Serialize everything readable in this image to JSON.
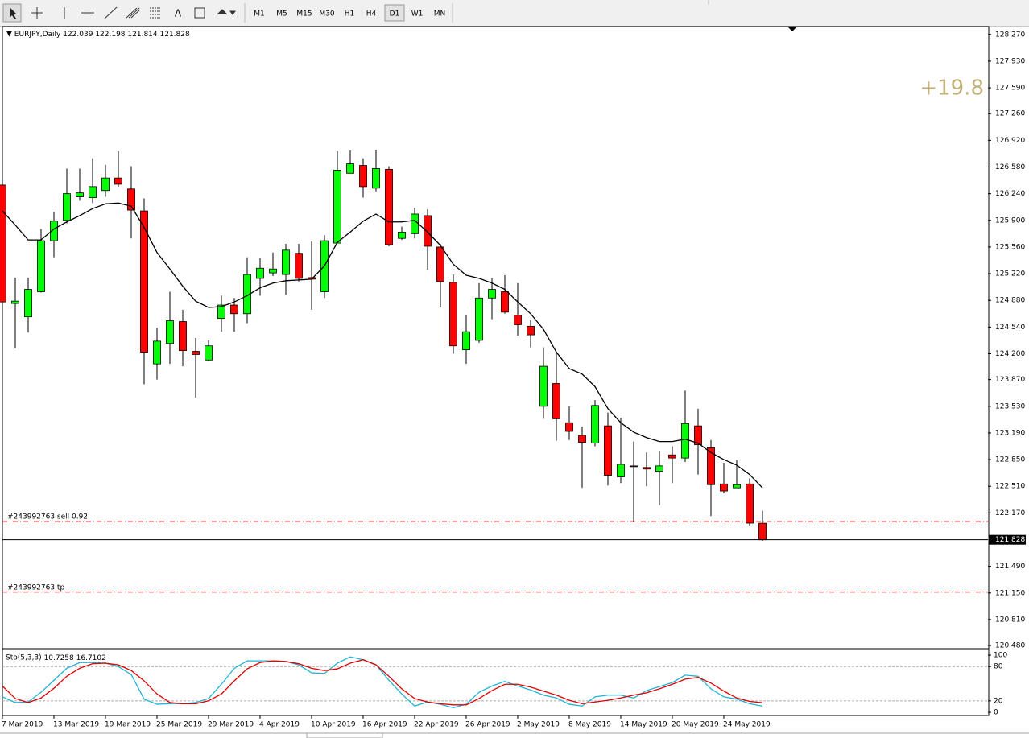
{
  "toolbar": {
    "text_tool": "A",
    "timeframes": [
      "M1",
      "M5",
      "M15",
      "M30",
      "H1",
      "H4",
      "D1",
      "W1",
      "MN"
    ],
    "active": "D1"
  },
  "chart_data": {
    "type": "candlestick",
    "symbol": "EURJPY,Daily",
    "quote": [
      122.039,
      122.198,
      121.814,
      121.828
    ],
    "profit": "+19.8",
    "categories": [
      "7 Mar 2019",
      null,
      null,
      null,
      "13 Mar 2019",
      null,
      null,
      null,
      "19 Mar 2019",
      null,
      null,
      null,
      "25 Mar 2019",
      null,
      null,
      null,
      "29 Mar 2019",
      null,
      null,
      null,
      "4 Apr 2019",
      null,
      null,
      null,
      "10 Apr 2019",
      null,
      null,
      null,
      "16 Apr 2019",
      null,
      null,
      null,
      "22 Apr 2019",
      null,
      null,
      null,
      "26 Apr 2019",
      null,
      null,
      null,
      "2 May 2019",
      null,
      null,
      null,
      "8 May 2019",
      null,
      null,
      null,
      "14 May 2019",
      null,
      null,
      null,
      "20 May 2019",
      null,
      null,
      null,
      "24 May 2019",
      null,
      null,
      null
    ],
    "open": [
      126.35,
      124.84,
      124.67,
      124.99,
      125.64,
      125.9,
      126.2,
      126.19,
      126.28,
      126.44,
      126.3,
      126.02,
      124.07,
      124.33,
      124.61,
      124.23,
      124.12,
      124.65,
      124.82,
      124.71,
      125.16,
      125.23,
      125.21,
      125.48,
      125.17,
      124.99,
      125.61,
      126.5,
      126.6,
      126.31,
      126.55,
      125.67,
      125.73,
      125.96,
      125.56,
      125.11,
      124.25,
      124.37,
      124.91,
      124.99,
      124.69,
      124.55,
      123.53,
      123.82,
      123.32,
      123.16,
      123.06,
      123.28,
      122.63,
      122.77,
      122.75,
      122.7,
      122.91,
      122.87,
      123.28,
      123.0,
      122.54,
      122.49,
      122.54,
      122.039
    ],
    "high": [
      126.43,
      125.17,
      125.17,
      125.79,
      126.01,
      126.56,
      126.56,
      126.69,
      126.61,
      126.78,
      126.59,
      126.18,
      124.53,
      124.99,
      124.76,
      124.4,
      124.37,
      124.94,
      124.91,
      125.43,
      125.42,
      125.49,
      125.6,
      125.6,
      125.63,
      125.71,
      126.78,
      126.79,
      126.69,
      126.8,
      126.59,
      125.82,
      126.06,
      126.04,
      125.6,
      125.21,
      124.69,
      125.1,
      125.16,
      125.2,
      125.1,
      124.63,
      124.28,
      124.23,
      123.53,
      123.27,
      123.61,
      123.45,
      123.38,
      123.08,
      122.94,
      122.96,
      123.02,
      123.73,
      123.5,
      123.1,
      122.81,
      122.84,
      122.61,
      122.198
    ],
    "low": [
      124.66,
      124.27,
      124.47,
      124.98,
      125.43,
      125.86,
      126.15,
      126.12,
      126.2,
      126.33,
      125.67,
      123.81,
      123.87,
      124.07,
      124.04,
      123.64,
      124.11,
      124.48,
      124.48,
      124.59,
      124.94,
      125.19,
      124.95,
      125.12,
      124.76,
      124.91,
      125.61,
      126.5,
      126.19,
      126.27,
      125.57,
      125.65,
      125.67,
      125.27,
      124.79,
      124.2,
      124.07,
      124.34,
      124.64,
      124.71,
      124.43,
      124.28,
      123.37,
      123.09,
      123.1,
      122.49,
      123.02,
      122.52,
      122.55,
      122.06,
      122.51,
      122.27,
      122.55,
      122.82,
      122.66,
      122.13,
      122.42,
      122.49,
      122.01,
      121.814
    ],
    "close": [
      124.86,
      124.87,
      125.02,
      125.64,
      125.89,
      126.24,
      126.25,
      126.33,
      126.44,
      126.36,
      126.03,
      124.22,
      124.36,
      124.62,
      124.24,
      124.19,
      124.3,
      124.82,
      124.71,
      125.21,
      125.29,
      125.28,
      125.52,
      125.16,
      125.15,
      125.64,
      126.54,
      126.62,
      126.33,
      126.56,
      125.59,
      125.75,
      125.98,
      125.57,
      125.12,
      124.3,
      124.48,
      124.91,
      125.02,
      124.73,
      124.57,
      124.44,
      124.04,
      123.37,
      123.21,
      123.07,
      123.54,
      122.65,
      122.79,
      122.76,
      122.73,
      122.77,
      122.87,
      123.31,
      123.04,
      122.53,
      122.45,
      122.53,
      122.04,
      121.828
    ],
    "up_color": "#00ff00",
    "down_color": "#ff0000",
    "ma": {
      "color": "#000000",
      "values": [
        126.02,
        125.84,
        125.65,
        125.65,
        125.79,
        125.88,
        125.96,
        126.05,
        126.11,
        126.12,
        126.08,
        125.81,
        125.49,
        125.28,
        125.06,
        124.87,
        124.79,
        124.8,
        124.86,
        124.94,
        125.04,
        125.1,
        125.13,
        125.14,
        125.15,
        125.32,
        125.62,
        125.75,
        125.89,
        125.98,
        125.88,
        125.88,
        125.9,
        125.75,
        125.58,
        125.34,
        125.2,
        125.16,
        125.1,
        125.02,
        124.86,
        124.71,
        124.51,
        124.22,
        124.01,
        123.94,
        123.78,
        123.5,
        123.32,
        123.2,
        123.13,
        123.08,
        123.08,
        123.11,
        123.06,
        122.94,
        122.85,
        122.78,
        122.66,
        122.49
      ]
    },
    "current_price": 121.828,
    "orders": [
      {
        "label": "#243992763 sell 0.92",
        "price": 122.06
      },
      {
        "label": "#243992763 tp",
        "price": 121.16
      }
    ],
    "ylim": [
      120.45,
      128.36
    ],
    "yticks": [
      {
        "value": 128.27,
        "label": "128.270"
      },
      {
        "value": 127.93,
        "label": "127.930"
      },
      {
        "value": 127.59,
        "label": "127.590"
      },
      {
        "value": 127.26,
        "label": "127.260"
      },
      {
        "value": 126.92,
        "label": "126.920"
      },
      {
        "value": 126.58,
        "label": "126.580"
      },
      {
        "value": 126.24,
        "label": "126.240"
      },
      {
        "value": 125.9,
        "label": "125.900"
      },
      {
        "value": 125.56,
        "label": "125.560"
      },
      {
        "value": 125.22,
        "label": "125.220"
      },
      {
        "value": 124.88,
        "label": "124.880"
      },
      {
        "value": 124.54,
        "label": "124.540"
      },
      {
        "value": 124.2,
        "label": "124.200"
      },
      {
        "value": 123.87,
        "label": "123.870"
      },
      {
        "value": 123.53,
        "label": "123.530"
      },
      {
        "value": 123.19,
        "label": "123.190"
      },
      {
        "value": 122.85,
        "label": "122.850"
      },
      {
        "value": 122.51,
        "label": "122.510"
      },
      {
        "value": 122.17,
        "label": "122.170"
      },
      {
        "value": 121.49,
        "label": "121.490"
      },
      {
        "value": 121.15,
        "label": "121.150"
      },
      {
        "value": 120.81,
        "label": "120.810"
      },
      {
        "value": 120.48,
        "label": "120.480"
      }
    ],
    "indicator": {
      "name": "Sto(5,3,3)",
      "main_value": 10.7258,
      "signal_value": 16.7102,
      "ylim": [
        -4.2,
        108.5
      ],
      "yticks": [
        0,
        20,
        80,
        100
      ],
      "levels": [
        20,
        80
      ],
      "series": [
        {
          "color": "#1fb4d6",
          "values": [
            27,
            17,
            18,
            35,
            56,
            77,
            87,
            87,
            86,
            80,
            66,
            23,
            14,
            15,
            15,
            17,
            24,
            49,
            77,
            90,
            90,
            90,
            89,
            83,
            69,
            68,
            86,
            97,
            92,
            83,
            56,
            32,
            11,
            18,
            14,
            8,
            14,
            35,
            46,
            54,
            46,
            39,
            30,
            25,
            14,
            11,
            27,
            30,
            30,
            25,
            38,
            45,
            52,
            65,
            63,
            41,
            27,
            23,
            15,
            10.7258
          ]
        },
        {
          "color": "#e00000",
          "values": [
            46,
            24,
            17,
            25,
            42,
            63,
            77,
            85,
            86,
            83,
            73,
            55,
            32,
            17,
            15,
            15,
            20,
            32,
            55,
            76,
            87,
            90,
            89,
            85,
            77,
            73,
            76,
            86,
            92,
            83,
            63,
            41,
            24,
            18,
            15,
            13,
            13,
            24,
            38,
            49,
            49,
            44,
            37,
            30,
            21,
            15,
            18,
            21,
            25,
            30,
            34,
            41,
            49,
            58,
            61,
            51,
            37,
            25,
            19,
            16.7102
          ]
        }
      ]
    }
  }
}
